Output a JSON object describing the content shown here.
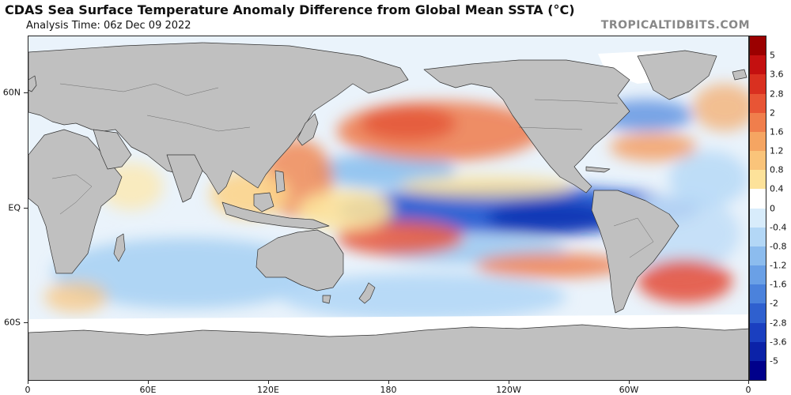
{
  "header": {
    "title": "CDAS Sea Surface Temperature Anomaly Difference from Global Mean SSTA (°C)",
    "analysis_time": "Analysis Time: 06z Dec 09 2022",
    "credit": "TROPICALTIDBITS.COM"
  },
  "map": {
    "latitude_labels": [
      "60N",
      "EQ",
      "60S"
    ],
    "longitude_labels": [
      "0",
      "60E",
      "120E",
      "180",
      "120W",
      "60W",
      "0"
    ],
    "land_color": "#c0c0c0",
    "ice_color": "#ffffff"
  },
  "colorbar": {
    "labels": [
      "5",
      "3.6",
      "2.8",
      "2",
      "1.6",
      "1.2",
      "0.8",
      "0.4",
      "0",
      "-0.4",
      "-0.8",
      "-1.2",
      "-1.6",
      "-2",
      "-2.8",
      "-3.6",
      "-5"
    ],
    "colors": [
      "#9b0000",
      "#c41010",
      "#d93020",
      "#e85535",
      "#f07e4c",
      "#f5a562",
      "#fac47a",
      "#fde29a",
      "#ffffff",
      "#d8ecfb",
      "#b3d7f6",
      "#8cbcee",
      "#6aa0e6",
      "#4b82dc",
      "#2f60cf",
      "#1a3fc0",
      "#0b22a8",
      "#00008b"
    ]
  }
}
